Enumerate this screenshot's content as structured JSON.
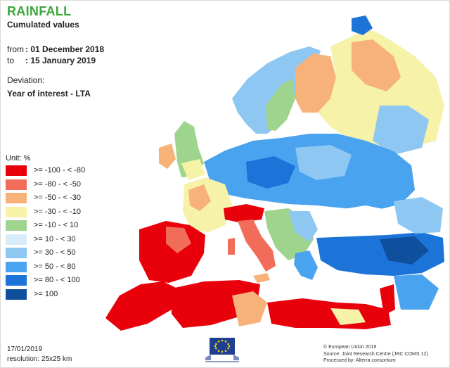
{
  "title": "RAINFALL",
  "subtitle": "Cumulated values",
  "period": {
    "from_label": "from",
    "from_value": ": 01 December 2018",
    "to_label": "to",
    "to_value": ": 15 January 2019"
  },
  "deviation": {
    "label": "Deviation:",
    "value": "Year of interest - LTA"
  },
  "legend": {
    "title": "Unit: %",
    "classes": [
      {
        "label": ">= -100 - < -80",
        "color": "#e8000b"
      },
      {
        "label": ">= -80 - < -50",
        "color": "#f26c5a"
      },
      {
        "label": ">= -50 - < -30",
        "color": "#f7b27a"
      },
      {
        "label": ">= -30 - < -10",
        "color": "#f6f2a8"
      },
      {
        "label": ">= -10 - < 10",
        "color": "#9fd48f"
      },
      {
        "label": ">= 10 - < 30",
        "color": "#d8ecfa"
      },
      {
        "label": ">= 30 - < 50",
        "color": "#8ec8f2"
      },
      {
        "label": ">= 50 - < 80",
        "color": "#4aa3ee"
      },
      {
        "label": ">= 80 - < 100",
        "color": "#1c74d8"
      },
      {
        "label": ">= 100",
        "color": "#0e4f9e"
      }
    ]
  },
  "footer": {
    "date": "17/01/2019",
    "resolution": "resolution: 25x25 km",
    "logo_name": "European Commission",
    "credit_1": "© European Union 2019",
    "credit_2": "Source: Joint Research Centre (JRC COMS 12)",
    "credit_3": "Processed by: Alterra consortium"
  }
}
